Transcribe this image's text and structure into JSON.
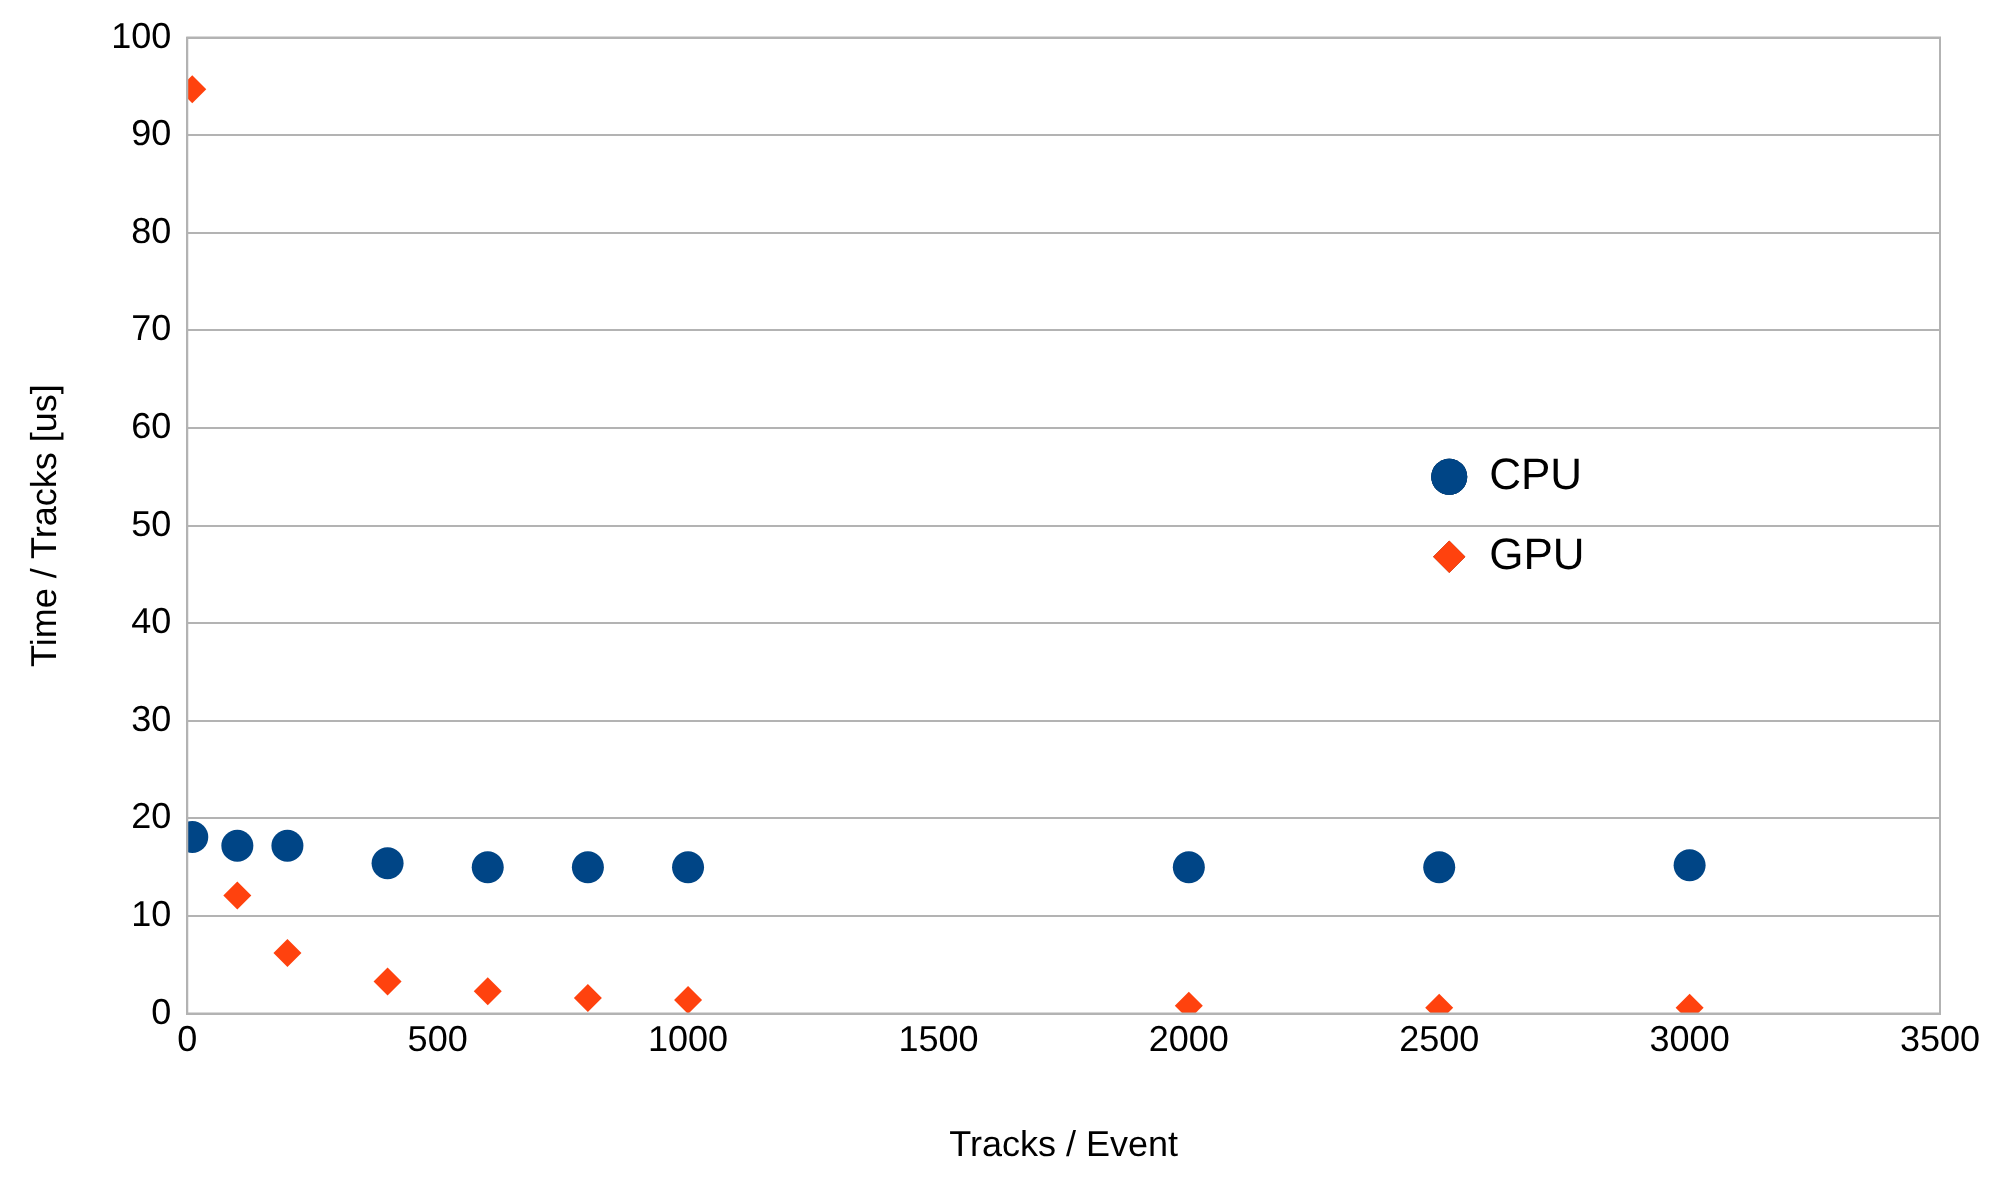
{
  "chart_data": {
    "type": "scatter",
    "xlabel": "Tracks / Event",
    "ylabel": "Time / Tracks [us]",
    "x": [
      10,
      100,
      200,
      400,
      600,
      800,
      1000,
      2000,
      2500,
      3000
    ],
    "series": [
      {
        "name": "CPU",
        "color": "#004586",
        "marker": "circle",
        "values": [
          18.1,
          17.2,
          17.2,
          15.4,
          15.0,
          15.0,
          15.0,
          15.0,
          15.0,
          15.2
        ]
      },
      {
        "name": "GPU",
        "color": "#ff420e",
        "marker": "diamond",
        "values": [
          94.7,
          12.1,
          6.2,
          3.3,
          2.3,
          1.6,
          1.4,
          0.8,
          0.6,
          0.6
        ]
      }
    ],
    "xlim": [
      0,
      3500
    ],
    "xticks": [
      0,
      500,
      1000,
      1500,
      2000,
      2500,
      3000,
      3500
    ],
    "ylim": [
      0,
      100
    ],
    "yticks": [
      0,
      10,
      20,
      30,
      40,
      50,
      60,
      70,
      80,
      90,
      100
    ],
    "grid": "y",
    "legend": "right"
  }
}
